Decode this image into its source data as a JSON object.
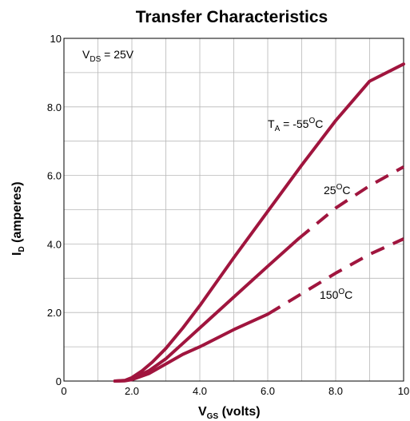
{
  "chart_data": {
    "type": "line",
    "title": "Transfer Characteristics",
    "xlabel": {
      "main": "V",
      "sub": "GS",
      "rest": " (volts)"
    },
    "ylabel": {
      "main": "I",
      "sub": "D",
      "rest": " (amperes)"
    },
    "xlim": [
      0,
      10
    ],
    "ylim": [
      0,
      10
    ],
    "x_ticks": [
      {
        "v": 0,
        "label": "0"
      },
      {
        "v": 2,
        "label": "2.0"
      },
      {
        "v": 4,
        "label": "4.0"
      },
      {
        "v": 6,
        "label": "6.0"
      },
      {
        "v": 8,
        "label": "8.0"
      },
      {
        "v": 10,
        "label": "10"
      }
    ],
    "y_ticks": [
      {
        "v": 0,
        "label": "0"
      },
      {
        "v": 2,
        "label": "2.0"
      },
      {
        "v": 4,
        "label": "4.0"
      },
      {
        "v": 6,
        "label": "6.0"
      },
      {
        "v": 8,
        "label": "8.0"
      },
      {
        "v": 10,
        "label": "10"
      }
    ],
    "grid": true,
    "grid_step": 1,
    "line_color": "#A0153E",
    "condition": {
      "main": "V",
      "sub": "DS",
      "rest": " = 25V"
    },
    "series": [
      {
        "name": "T_A = -55°C",
        "solid": [
          [
            1.5,
            0
          ],
          [
            1.8,
            0.02
          ],
          [
            2.0,
            0.1
          ],
          [
            2.3,
            0.3
          ],
          [
            2.6,
            0.55
          ],
          [
            3.0,
            0.95
          ],
          [
            3.5,
            1.55
          ],
          [
            4.0,
            2.2
          ],
          [
            5.0,
            3.6
          ],
          [
            6.0,
            4.95
          ],
          [
            7.0,
            6.3
          ],
          [
            8.0,
            7.6
          ],
          [
            9.0,
            8.75
          ],
          [
            10.0,
            9.25
          ]
        ],
        "dashed": []
      },
      {
        "name": "25°C",
        "solid": [
          [
            1.5,
            0
          ],
          [
            1.8,
            0.01
          ],
          [
            2.0,
            0.06
          ],
          [
            2.5,
            0.3
          ],
          [
            3.0,
            0.65
          ],
          [
            3.5,
            1.1
          ],
          [
            4.0,
            1.55
          ],
          [
            5.0,
            2.45
          ],
          [
            6.0,
            3.35
          ],
          [
            6.9,
            4.15
          ]
        ],
        "dashed": [
          [
            6.9,
            4.15
          ],
          [
            8.0,
            5.05
          ],
          [
            9.0,
            5.7
          ],
          [
            10.0,
            6.25
          ]
        ]
      },
      {
        "name": "150°C",
        "solid": [
          [
            1.5,
            0
          ],
          [
            1.8,
            0.01
          ],
          [
            2.0,
            0.04
          ],
          [
            2.5,
            0.22
          ],
          [
            3.0,
            0.5
          ],
          [
            3.5,
            0.78
          ],
          [
            4.0,
            1.0
          ],
          [
            5.0,
            1.5
          ],
          [
            6.0,
            1.95
          ]
        ],
        "dashed": [
          [
            6.0,
            1.95
          ],
          [
            7.0,
            2.55
          ],
          [
            8.0,
            3.15
          ],
          [
            9.0,
            3.7
          ],
          [
            10.0,
            4.15
          ]
        ]
      }
    ],
    "labels": [
      {
        "series": 0,
        "main": "T",
        "sub": "A",
        "mid": " = -55",
        "sup": "O",
        "end": "C"
      },
      {
        "series": 1,
        "main": "25",
        "sup": "O",
        "end": "C"
      },
      {
        "series": 2,
        "main": "150",
        "sup": "O",
        "end": "C"
      }
    ]
  }
}
